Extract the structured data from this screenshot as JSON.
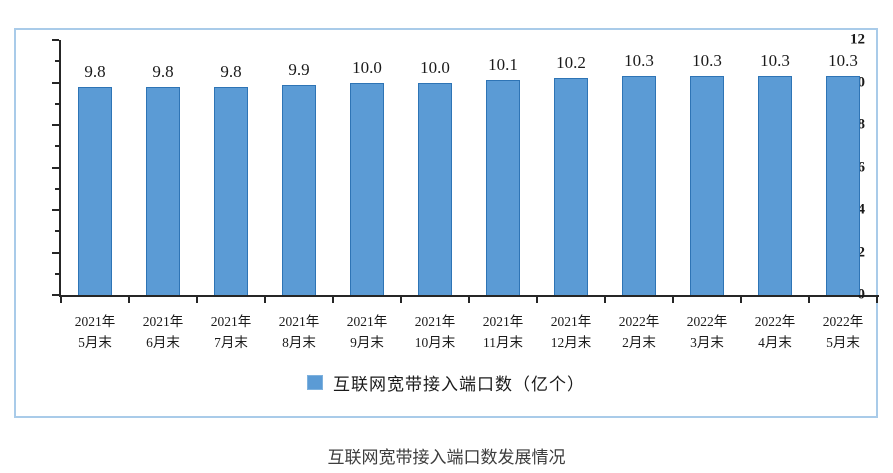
{
  "chart_data": {
    "type": "bar",
    "title": "互联网宽带接入端口数发展情况",
    "categories": [
      "2021年\n5月末",
      "2021年\n6月末",
      "2021年\n7月末",
      "2021年\n8月末",
      "2021年\n9月末",
      "2021年\n10月末",
      "2021年\n11月末",
      "2021年\n12月末",
      "2022年\n2月末",
      "2022年\n3月末",
      "2022年\n4月末",
      "2022年\n5月末"
    ],
    "values": [
      9.8,
      9.8,
      9.8,
      9.9,
      10.0,
      10.0,
      10.1,
      10.2,
      10.3,
      10.3,
      10.3,
      10.3
    ],
    "value_labels": [
      "9.8",
      "9.8",
      "9.8",
      "9.9",
      "10.0",
      "10.0",
      "10.1",
      "10.2",
      "10.3",
      "10.3",
      "10.3",
      "10.3"
    ],
    "legend": "互联网宽带接入端口数（亿个）",
    "legend_position": "bottom",
    "xlabel": "",
    "ylabel": "",
    "ylim": [
      0,
      12
    ],
    "ytick_major_step": 2,
    "ytick_minor_step": 1,
    "ytick_labels": [
      "0",
      "2",
      "4",
      "6",
      "8",
      "10",
      "12"
    ],
    "grid": false,
    "colors": {
      "bar_fill": "#5b9bd5",
      "bar_border": "#2e74b5",
      "box_border": "#a9cbe9",
      "axis": "#262626",
      "caption_text": "#3d3d3d"
    }
  }
}
